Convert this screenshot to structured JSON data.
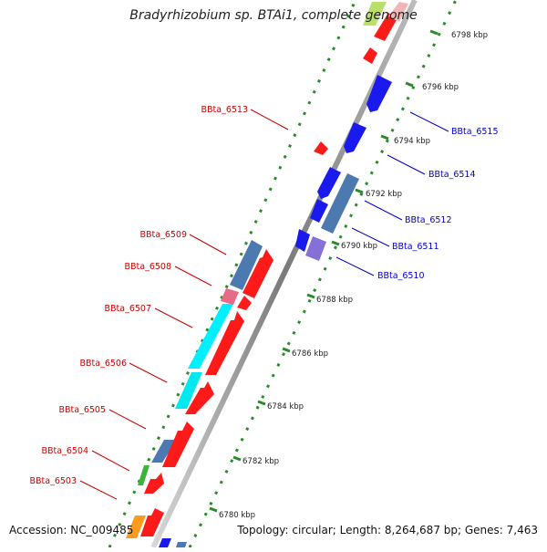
{
  "title": "Bradyrhizobium sp. BTAi1, complete genome",
  "footer": {
    "accession": "Accession: NC_009485",
    "summary": "Topology: circular; Length: 8,264,687 bp; Genes: 7,463"
  },
  "colors": {
    "forward_strand": "#ff1a1a",
    "reverse_strand": "#1a1aee",
    "label_forward": "#cc0000",
    "label_reverse": "#0000cc",
    "ticks": "#2a8a2a",
    "backbone": "#8c8c8c"
  },
  "scale_labels": [
    "6780 kbp",
    "6782 kbp",
    "6784 kbp",
    "6786 kbp",
    "6788 kbp",
    "6790 kbp",
    "6792 kbp",
    "6794 kbp",
    "6796 kbp",
    "6798 kbp"
  ],
  "gene_labels": {
    "left": [
      "BBta_6503",
      "BBta_6504",
      "BBta_6505",
      "BBta_6506",
      "BBta_6507",
      "BBta_6508",
      "BBta_6509",
      "BBta_6513"
    ],
    "right": [
      "BBta_6510",
      "BBta_6511",
      "BBta_6512",
      "BBta_6514",
      "BBta_6515"
    ]
  }
}
